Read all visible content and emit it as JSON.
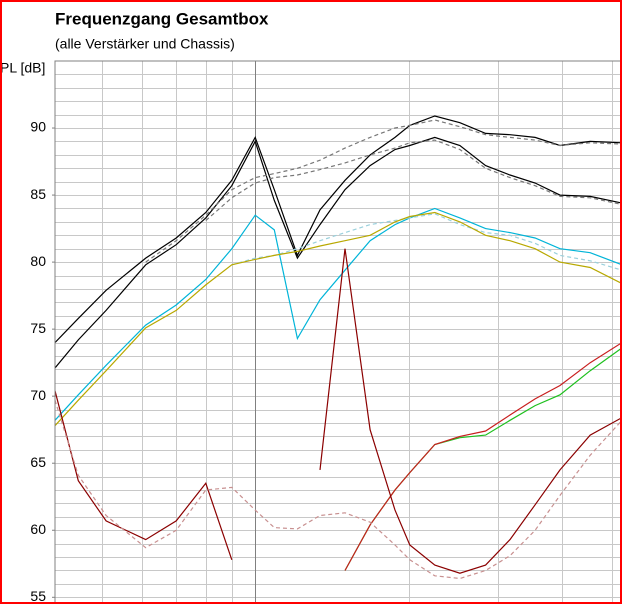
{
  "chart_data": {
    "type": "line",
    "title": "Frequenzgang Gesamtbox",
    "subtitle": "(alle Verstärker und Chassis)",
    "y_label": "PL [dB]",
    "log_x": true,
    "xlim": [
      40.5,
      524
    ],
    "ylim": [
      54.5,
      95
    ],
    "yticks": [
      55,
      60,
      65,
      70,
      75,
      80,
      85,
      90
    ],
    "y_grid": [
      55,
      56,
      57,
      58,
      59,
      60,
      61,
      62,
      63,
      64,
      65,
      66,
      67,
      68,
      69,
      70,
      71,
      72,
      73,
      74,
      75,
      76,
      77,
      78,
      79,
      80,
      81,
      82,
      83,
      84,
      85,
      86,
      87,
      88,
      89,
      90,
      91,
      92,
      93,
      94
    ],
    "x_grid": [
      50,
      60,
      70,
      80,
      90,
      100,
      200,
      300,
      400,
      500
    ],
    "x_grid_major": [
      100
    ],
    "x": [
      40.5,
      45,
      51,
      61,
      70,
      80,
      90,
      100,
      109,
      121,
      134,
      150,
      168,
      188,
      201,
      225,
      252,
      283,
      316,
      354,
      396,
      454,
      524
    ],
    "series": [
      {
        "color": "#000000",
        "dashed": false,
        "values": [
          74.0,
          75.8,
          77.9,
          80.3,
          81.8,
          83.7,
          86.1,
          89.3,
          85.4,
          80.5,
          83.9,
          86.1,
          88.0,
          89.3,
          90.2,
          90.9,
          90.4,
          89.6,
          89.5,
          89.3,
          88.7,
          89.0,
          88.9
        ]
      },
      {
        "color": "#000000",
        "dashed": false,
        "values": [
          72.1,
          74.2,
          76.4,
          79.8,
          81.3,
          83.3,
          85.7,
          89.0,
          84.6,
          80.3,
          82.8,
          85.4,
          87.2,
          88.4,
          88.7,
          89.3,
          88.7,
          87.2,
          86.5,
          85.9,
          85.0,
          84.9,
          84.4
        ]
      },
      {
        "color": "#777777",
        "dashed": true,
        "values": [
          null,
          null,
          null,
          80.0,
          81.6,
          83.5,
          85.4,
          86.3,
          86.6,
          87.0,
          87.6,
          88.5,
          89.3,
          90.0,
          90.2,
          90.6,
          90.1,
          89.5,
          89.3,
          89.1,
          88.7,
          88.9,
          88.8
        ]
      },
      {
        "color": "#777777",
        "dashed": true,
        "values": [
          null,
          null,
          null,
          null,
          null,
          83.1,
          84.8,
          85.9,
          86.3,
          86.5,
          86.9,
          87.4,
          88.0,
          88.5,
          88.9,
          89.1,
          88.4,
          87.0,
          86.3,
          85.7,
          84.9,
          84.8,
          84.3
        ]
      },
      {
        "color": "#00b4d8",
        "dashed": false,
        "values": [
          68.2,
          70.1,
          72.3,
          75.3,
          76.8,
          78.7,
          81.0,
          83.5,
          82.4,
          74.3,
          77.2,
          79.4,
          81.6,
          82.8,
          83.3,
          84.0,
          83.3,
          82.5,
          82.2,
          81.8,
          81.0,
          80.7,
          79.8
        ]
      },
      {
        "color": "#9ad0dc",
        "dashed": true,
        "values": [
          null,
          null,
          null,
          null,
          null,
          null,
          79.8,
          80.3,
          80.5,
          81.0,
          81.6,
          82.2,
          82.8,
          83.1,
          83.3,
          83.6,
          82.8,
          82.2,
          82.0,
          81.4,
          80.5,
          80.1,
          79.4
        ]
      },
      {
        "color": "#b8a800",
        "dashed": false,
        "values": [
          67.8,
          69.7,
          71.9,
          75.1,
          76.4,
          78.3,
          79.8,
          80.2,
          80.5,
          80.8,
          81.2,
          81.6,
          82.0,
          83.0,
          83.4,
          83.7,
          83.0,
          82.0,
          81.6,
          81.0,
          80.0,
          79.6,
          78.4
        ]
      },
      {
        "color": "#1ec01e",
        "dashed": false,
        "values": [
          null,
          null,
          null,
          null,
          null,
          null,
          null,
          null,
          null,
          null,
          null,
          57.0,
          60.4,
          63.0,
          64.3,
          66.4,
          66.9,
          67.1,
          68.2,
          69.3,
          70.1,
          71.9,
          73.6
        ]
      },
      {
        "color": "#c81e1e",
        "dashed": false,
        "values": [
          null,
          null,
          null,
          null,
          null,
          null,
          null,
          null,
          null,
          null,
          null,
          57.0,
          60.4,
          63.0,
          64.3,
          66.4,
          67.0,
          67.4,
          68.6,
          69.8,
          70.8,
          72.5,
          74.0
        ]
      },
      {
        "color": "#8b0000",
        "dashed": false,
        "values": [
          70.4,
          63.7,
          60.7,
          59.3,
          60.7,
          63.5,
          57.8,
          null,
          null,
          null,
          64.5,
          81.0,
          67.5,
          61.5,
          58.9,
          57.4,
          56.8,
          57.4,
          59.3,
          61.9,
          64.5,
          67.1,
          68.4
        ]
      },
      {
        "color": "#c89090",
        "dashed": true,
        "values": [
          69.7,
          64.1,
          61.1,
          58.7,
          60.0,
          63.0,
          63.2,
          61.5,
          60.2,
          60.1,
          61.1,
          61.3,
          60.6,
          58.9,
          57.8,
          56.6,
          56.4,
          57.0,
          58.1,
          60.0,
          62.6,
          65.6,
          68.2
        ]
      }
    ]
  }
}
